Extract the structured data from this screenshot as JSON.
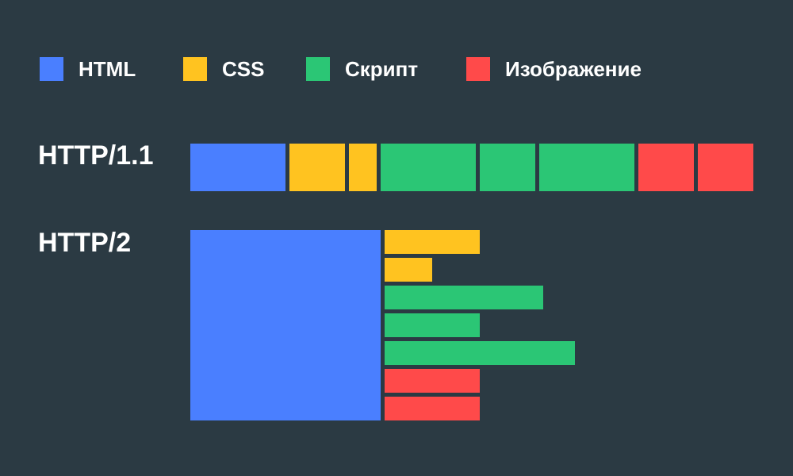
{
  "legend": [
    {
      "label": "HTML",
      "color": "#4a7fff"
    },
    {
      "label": "CSS",
      "color": "#ffc320"
    },
    {
      "label": "Скрипт",
      "color": "#2bc675"
    },
    {
      "label": "Изображение",
      "color": "#ff4a4a"
    }
  ],
  "protocols": {
    "http11": {
      "label": "HTTP/1.1",
      "sequence": [
        "html",
        "css",
        "css",
        "script",
        "script",
        "script",
        "image",
        "image"
      ]
    },
    "http2": {
      "label": "HTTP/2",
      "parallel": [
        "html",
        "css",
        "css",
        "script",
        "script",
        "script",
        "image",
        "image"
      ]
    }
  },
  "colors": {
    "background": "#2b3a43",
    "html": "#4a7fff",
    "css": "#ffc320",
    "script": "#2bc675",
    "image": "#ff4a4a"
  }
}
